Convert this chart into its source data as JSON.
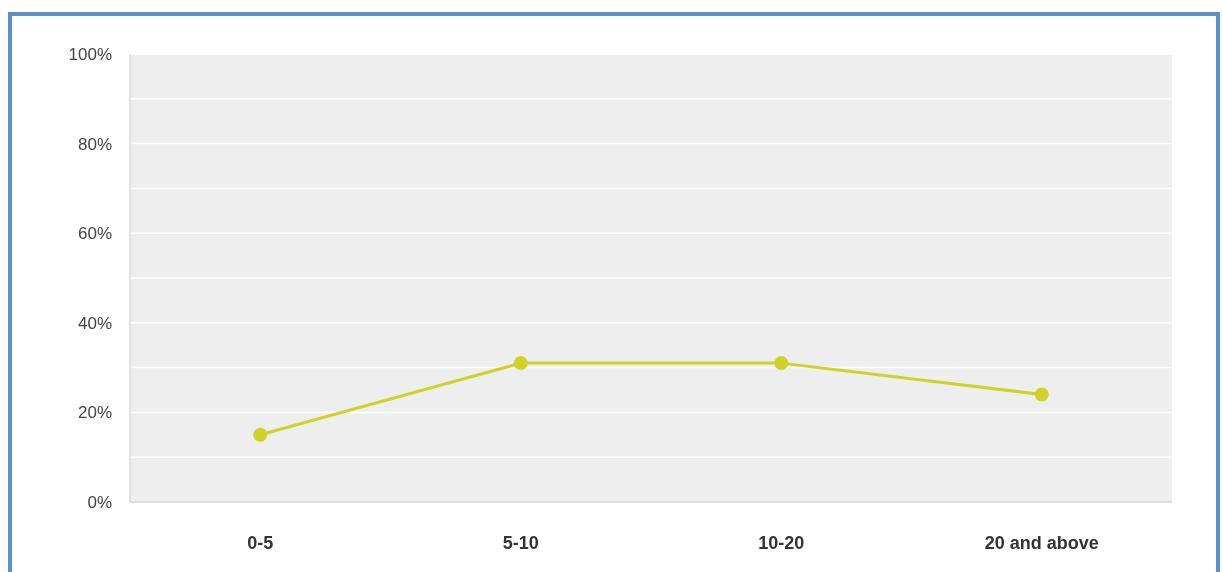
{
  "chart_data": {
    "type": "line",
    "categories": [
      "0-5",
      "5-10",
      "10-20",
      "20 and above"
    ],
    "series": [
      {
        "color": "#cdd329",
        "values": [
          15,
          31,
          31,
          24
        ]
      }
    ],
    "ylim": [
      0,
      100
    ],
    "yticks": [
      {
        "value": 0,
        "label": "0%"
      },
      {
        "value": 10,
        "label": null
      },
      {
        "value": 20,
        "label": "20%"
      },
      {
        "value": 30,
        "label": null
      },
      {
        "value": 40,
        "label": "40%"
      },
      {
        "value": 50,
        "label": null
      },
      {
        "value": 60,
        "label": "60%"
      },
      {
        "value": 70,
        "label": null
      },
      {
        "value": 80,
        "label": "80%"
      },
      {
        "value": 90,
        "label": null
      },
      {
        "value": 100,
        "label": "100%"
      }
    ],
    "grid": "y",
    "marker": "circle",
    "line_style": "solid"
  }
}
